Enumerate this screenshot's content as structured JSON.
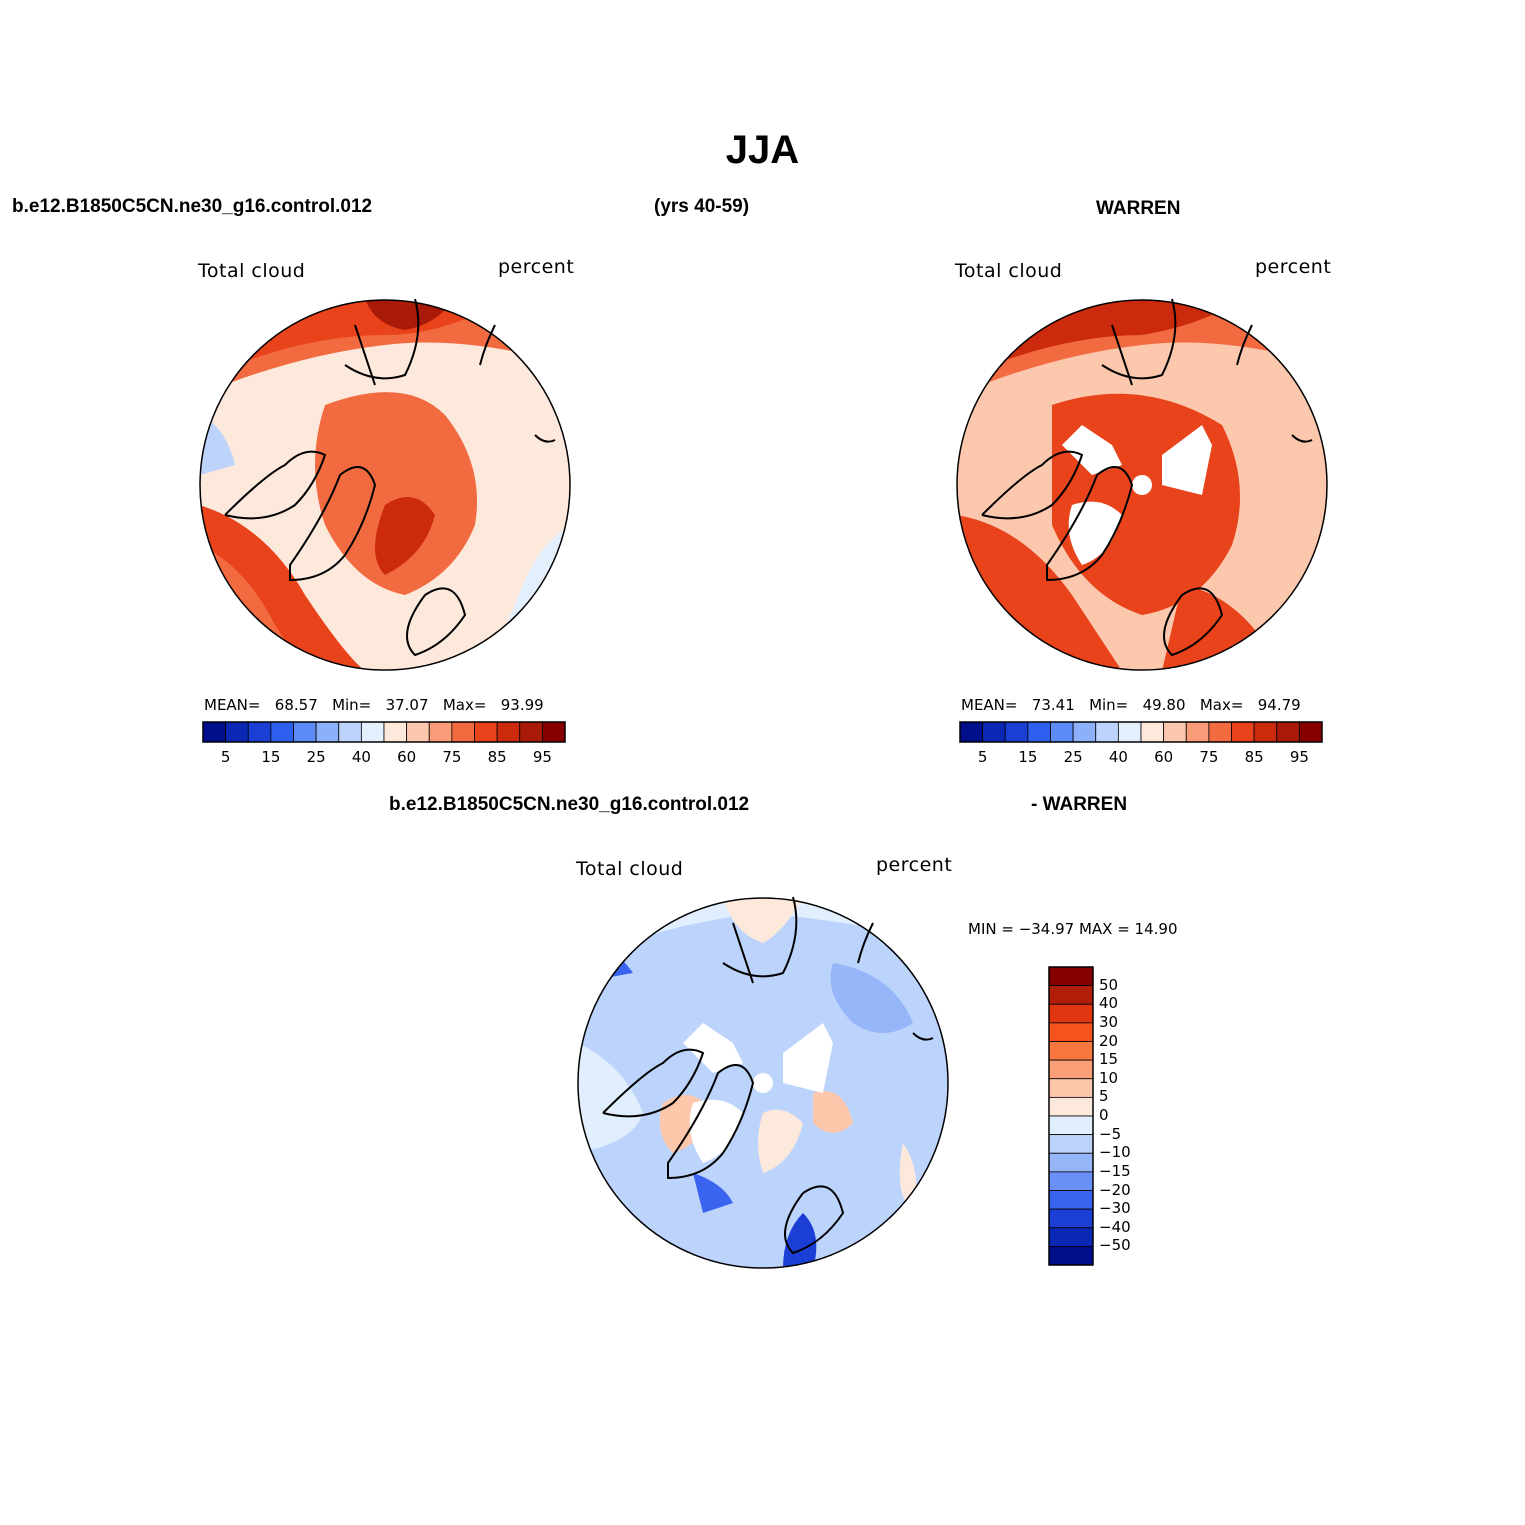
{
  "title": "JJA",
  "header": {
    "case_name": "b.e12.B1850C5CN.ne30_g16.control.012",
    "years": "(yrs 40-59)",
    "obs_name": "WARREN",
    "diff_case": "b.e12.B1850C5CN.ne30_g16.control.012",
    "diff_obs": "- WARREN"
  },
  "panels": [
    {
      "variable": "Total cloud",
      "units": "percent",
      "stats": {
        "mean_label": "MEAN=",
        "mean": "68.57",
        "min_label": "Min=",
        "min": "37.07",
        "max_label": "Max=",
        "max": "93.99"
      }
    },
    {
      "variable": "Total cloud",
      "units": "percent",
      "stats": {
        "mean_label": "MEAN=",
        "mean": "73.41",
        "min_label": "Min=",
        "min": "49.80",
        "max_label": "Max=",
        "max": "94.79"
      }
    },
    {
      "variable": "Total cloud",
      "units": "percent",
      "minmax": "MIN = −34.97 MAX =  14.90"
    }
  ],
  "colorbar_abs": {
    "tick_labels": [
      "5",
      "15",
      "25",
      "40",
      "60",
      "75",
      "85",
      "95"
    ],
    "colors": [
      "#000e8c",
      "#0b28b5",
      "#1b3fd5",
      "#2f5fee",
      "#5d8cf6",
      "#8cb0f9",
      "#bcd3fb",
      "#e4effd",
      "#fde8dc",
      "#fbc7ad",
      "#f89d77",
      "#f26b40",
      "#e8431a",
      "#cc2a0d",
      "#a91a08",
      "#860000"
    ]
  },
  "colorbar_diff": {
    "tick_labels": [
      "50",
      "40",
      "30",
      "20",
      "15",
      "10",
      "5",
      "0",
      "−5",
      "−10",
      "−15",
      "−20",
      "−30",
      "−40",
      "−50"
    ],
    "colors": [
      "#860000",
      "#b01e09",
      "#e03610",
      "#f5521c",
      "#f7773f",
      "#fa9f78",
      "#fcc7ab",
      "#fde9dc",
      "#e1eefd",
      "#bcd3fb",
      "#95b6f9",
      "#6990f6",
      "#3a64ef",
      "#1b3fd5",
      "#0b28b5",
      "#000e8c"
    ]
  },
  "icons": [
    "polar-stereographic-map",
    "coastline-outline"
  ]
}
